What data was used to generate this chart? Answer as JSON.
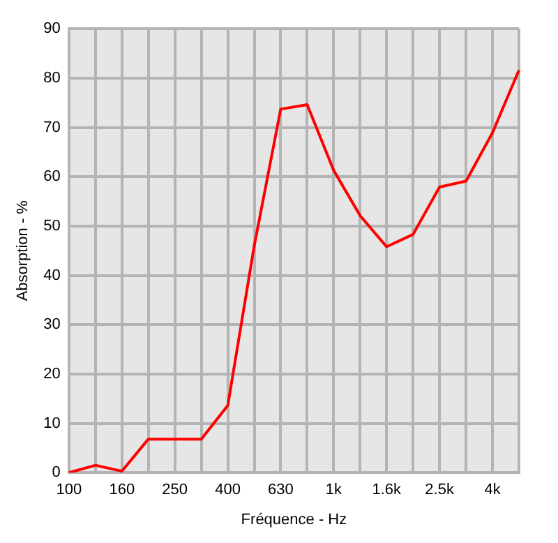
{
  "chart_data": {
    "type": "line",
    "xlabel": "Fréquence - Hz",
    "ylabel": "Absorption - %",
    "categories": [
      "100",
      null,
      "160",
      null,
      "250",
      null,
      "400",
      null,
      "630",
      null,
      "1k",
      null,
      "1.6k",
      null,
      "2.5k",
      null,
      "4k",
      null
    ],
    "series": [
      {
        "color": "#ff0000",
        "values": [
          0,
          1.5,
          0.3,
          6.8,
          6.8,
          6.8,
          13.6,
          46,
          73.7,
          74.6,
          61.3,
          52.1,
          45.8,
          48.3,
          57.9,
          59.1,
          68.9,
          81.6
        ]
      }
    ],
    "ylim": [
      0,
      90
    ],
    "yticks": [
      0,
      10,
      20,
      30,
      40,
      50,
      60,
      70,
      80,
      90
    ],
    "grid": true,
    "legend": false,
    "marker": "none",
    "line_style": "solid"
  }
}
